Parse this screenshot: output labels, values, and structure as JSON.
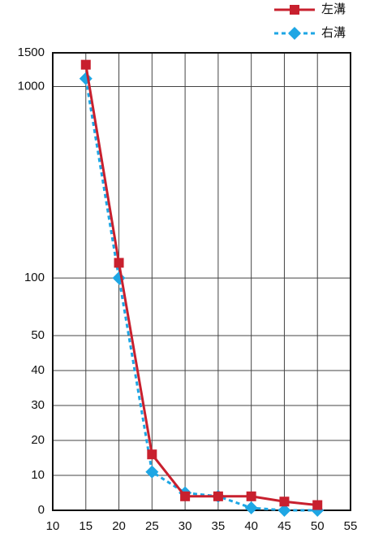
{
  "chart_data": {
    "type": "line",
    "x": [
      15,
      20,
      25,
      30,
      35,
      40,
      45,
      50
    ],
    "series": [
      {
        "name": "左溝",
        "color": "#c8202e",
        "marker": "square",
        "dash": "solid",
        "values": [
          1300,
          120,
          16,
          4,
          4,
          4,
          2.5,
          1.5
        ]
      },
      {
        "name": "右溝",
        "color": "#1ea6e4",
        "marker": "diamond",
        "dash": "dashed",
        "values": [
          1100,
          100,
          11,
          5,
          4,
          0.7,
          0,
          0
        ]
      }
    ],
    "xlim": [
      10,
      55
    ],
    "xticks": [
      10,
      15,
      20,
      25,
      30,
      35,
      40,
      45,
      50,
      55
    ],
    "ylim": [
      0,
      1500
    ],
    "yticks": [
      0,
      10,
      20,
      30,
      40,
      50,
      100,
      1000,
      1500
    ],
    "yscale": "symlog",
    "linthresh": 50,
    "grid": true,
    "legend": "top-right"
  }
}
